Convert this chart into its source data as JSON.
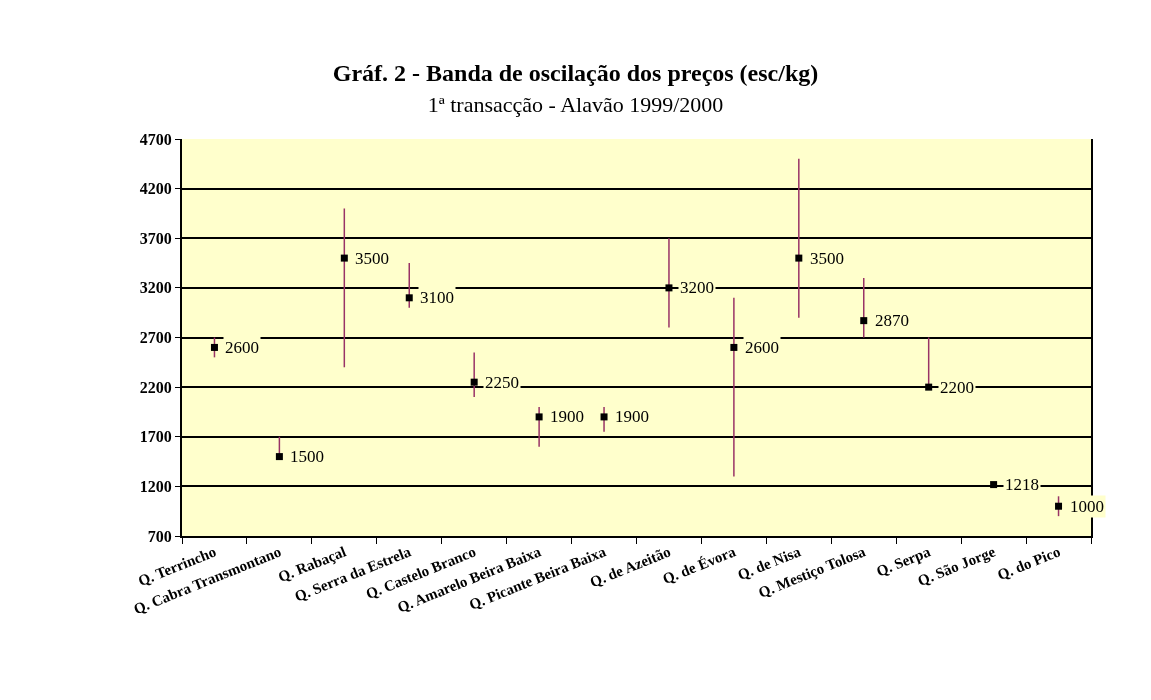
{
  "chart_data": {
    "type": "scatter",
    "title": "Gráf. 2 - Banda de oscilação dos preços (esc/kg)",
    "subtitle": "1ª transacção - Alavão 1999/2000",
    "categories": [
      "Q. Terrincho",
      "Q. Cabra Transmontano",
      "Q. Rabaçal",
      "Q. Serra da Estrela",
      "Q. Castelo Branco",
      "Q. Amarelo Beira Baixa",
      "Q. Picante Beira Baixa",
      "Q. de Azeitão",
      "Q. de Évora",
      "Q. de Nisa",
      "Q. Mestiço Tolosa",
      "Q. Serpa",
      "Q. São Jorge",
      "Q. do Pico"
    ],
    "series": [
      {
        "color": "#000000",
        "values": [
          2600,
          1500,
          3500,
          3100,
          2250,
          1900,
          1900,
          3200,
          2600,
          3500,
          2870,
          2200,
          1218,
          1000
        ],
        "errors": [
          [
            2500,
            2700
          ],
          [
            1500,
            1700
          ],
          [
            2400,
            4000
          ],
          [
            3000,
            3450
          ],
          [
            2100,
            2550
          ],
          [
            1600,
            2000
          ],
          [
            1750,
            2000
          ],
          [
            2800,
            3700
          ],
          [
            1300,
            3100
          ],
          [
            2900,
            4500
          ],
          [
            2700,
            3300
          ],
          [
            2200,
            2700
          ],
          null,
          [
            900,
            1100
          ]
        ]
      }
    ],
    "ylim": [
      700,
      4700
    ],
    "yticks": [
      700,
      1200,
      1700,
      2200,
      2700,
      3200,
      3700,
      4200,
      4700
    ],
    "grid": "y",
    "legend": false,
    "marker": "square",
    "data_labels": true
  }
}
